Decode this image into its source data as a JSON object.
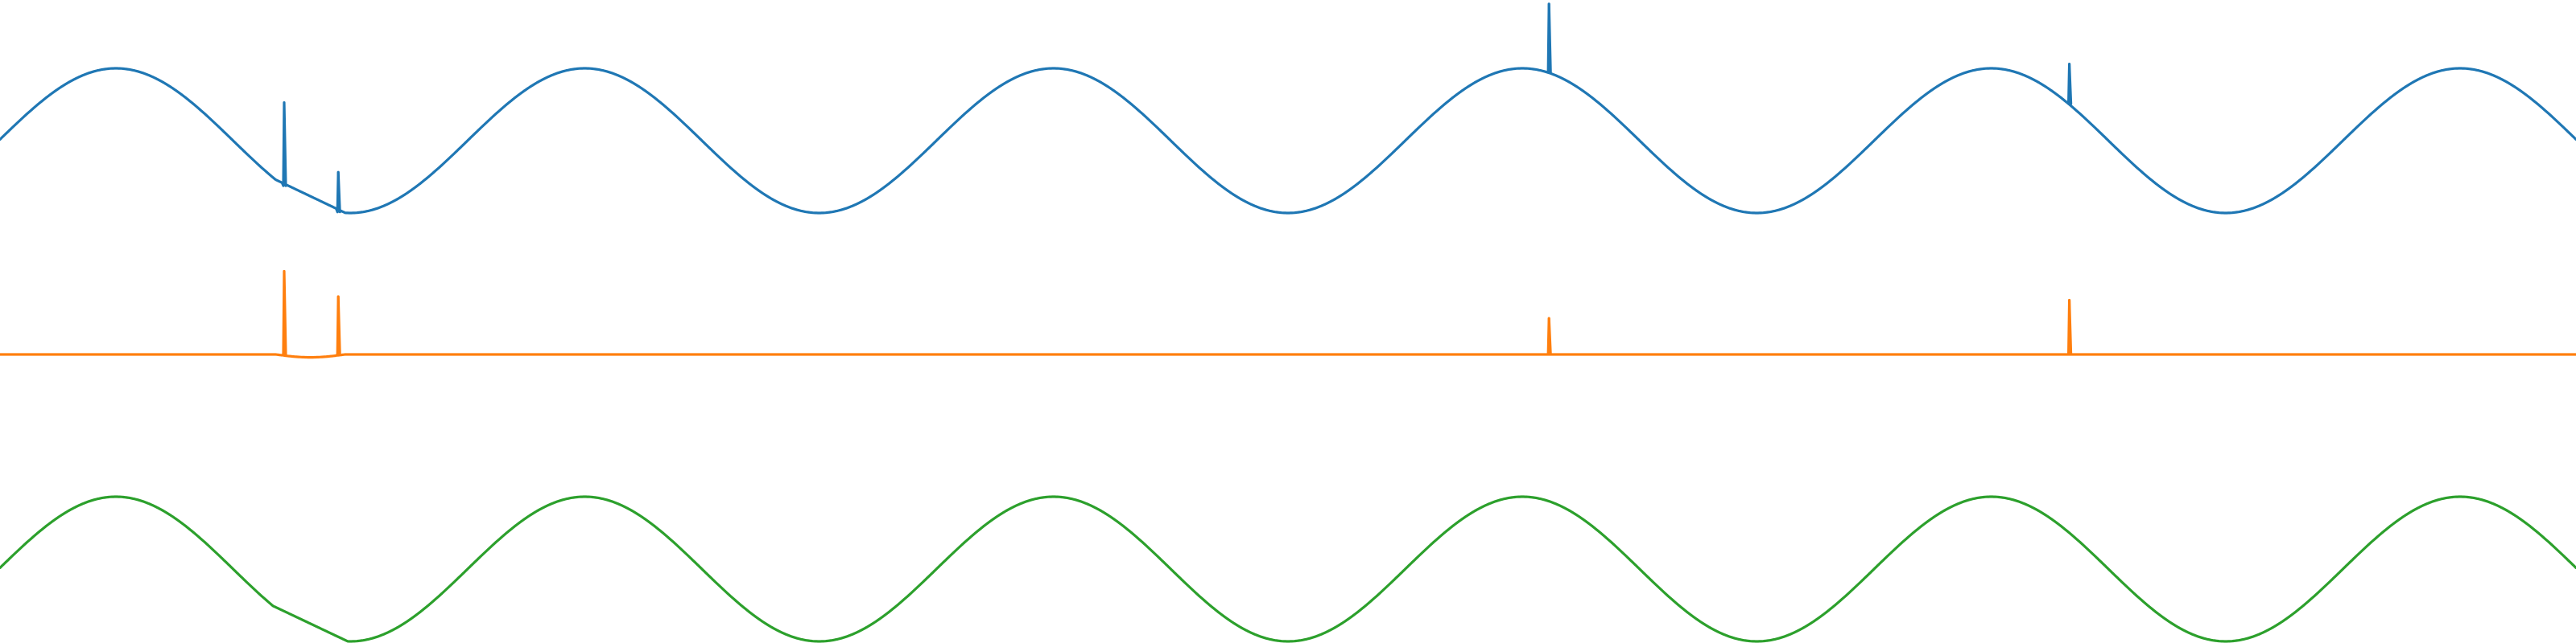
{
  "chart_data": {
    "type": "line",
    "title": "",
    "xlabel": "",
    "ylabel": "",
    "grid": false,
    "legend": "none",
    "axes_visible": false,
    "x_range": [
      0,
      1000
    ],
    "panels": [
      {
        "series": [
          {
            "color": "#1f77b4",
            "baseline": 0,
            "amplitude": 1,
            "period": 182,
            "phase_x": 0,
            "spikes": [
              {
                "x": 110,
                "value": 1.15
              },
              {
                "x": 131,
                "value": 0.55
              },
              {
                "x": 601,
                "value": 0.95
              },
              {
                "x": 803,
                "value": 0.55
              }
            ],
            "deviation": {
              "from": 107,
              "to": 134,
              "shape": "linear_descent"
            }
          }
        ]
      },
      {
        "series": [
          {
            "color": "#ff7f0e",
            "baseline": 0,
            "amplitude": 0,
            "spikes": [
              {
                "x": 110,
                "value": 1.15
              },
              {
                "x": 131,
                "value": 0.8
              },
              {
                "x": 601,
                "value": 0.5
              },
              {
                "x": 803,
                "value": 0.75
              }
            ],
            "deviation": {
              "from": 107,
              "to": 134,
              "shape": "small_dip"
            }
          }
        ]
      },
      {
        "series": [
          {
            "color": "#2ca02c",
            "baseline": 0,
            "amplitude": 1,
            "period": 182,
            "phase_x": 0,
            "spikes": [],
            "deviation": {
              "from": 106,
              "to": 135,
              "shape": "linear_descent"
            }
          }
        ]
      }
    ]
  }
}
